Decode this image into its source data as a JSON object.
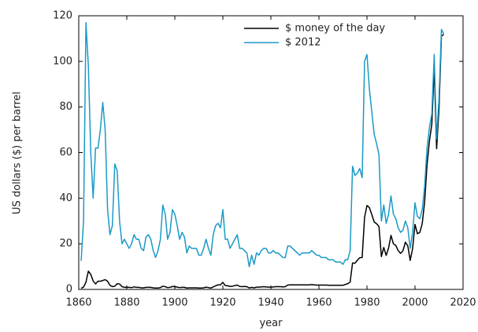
{
  "chart_data": {
    "type": "line",
    "xlabel": "year",
    "ylabel": "US dollars ($) per barrel",
    "x": [
      1861,
      1862,
      1863,
      1864,
      1865,
      1866,
      1867,
      1868,
      1869,
      1870,
      1871,
      1872,
      1873,
      1874,
      1875,
      1876,
      1877,
      1878,
      1879,
      1880,
      1881,
      1882,
      1883,
      1884,
      1885,
      1886,
      1887,
      1888,
      1889,
      1890,
      1891,
      1892,
      1893,
      1894,
      1895,
      1896,
      1897,
      1898,
      1899,
      1900,
      1901,
      1902,
      1903,
      1904,
      1905,
      1906,
      1907,
      1908,
      1909,
      1910,
      1911,
      1912,
      1913,
      1914,
      1915,
      1916,
      1917,
      1918,
      1919,
      1920,
      1921,
      1922,
      1923,
      1924,
      1925,
      1926,
      1927,
      1928,
      1929,
      1930,
      1931,
      1932,
      1933,
      1934,
      1935,
      1936,
      1937,
      1938,
      1939,
      1940,
      1941,
      1942,
      1943,
      1944,
      1945,
      1946,
      1947,
      1948,
      1949,
      1950,
      1951,
      1952,
      1953,
      1954,
      1955,
      1956,
      1957,
      1958,
      1959,
      1960,
      1961,
      1962,
      1963,
      1964,
      1965,
      1966,
      1967,
      1968,
      1969,
      1970,
      1971,
      1972,
      1973,
      1974,
      1975,
      1976,
      1977,
      1978,
      1979,
      1980,
      1981,
      1982,
      1983,
      1984,
      1985,
      1986,
      1987,
      1988,
      1989,
      1990,
      1991,
      1992,
      1993,
      1994,
      1995,
      1996,
      1997,
      1998,
      1999,
      2000,
      2001,
      2002,
      2003,
      2004,
      2005,
      2006,
      2007,
      2008,
      2009,
      2010,
      2011,
      2012
    ],
    "series": [
      {
        "name": "$ money of the day",
        "color": "#000000",
        "values": [
          0.5,
          1,
          3.2,
          8,
          6.6,
          3.7,
          2.4,
          3.6,
          3.6,
          3.9,
          4.3,
          3.6,
          1.8,
          1.2,
          1.4,
          2.5,
          2.4,
          1.2,
          0.9,
          0.95,
          0.9,
          0.8,
          1.1,
          0.9,
          0.9,
          0.7,
          0.7,
          0.9,
          0.9,
          0.9,
          0.7,
          0.6,
          0.6,
          0.8,
          1.4,
          1.2,
          0.8,
          0.9,
          1.3,
          1.2,
          1,
          0.8,
          0.9,
          0.9,
          0.6,
          0.7,
          0.7,
          0.7,
          0.7,
          0.6,
          0.6,
          0.7,
          1,
          0.8,
          0.6,
          1.1,
          1.6,
          2,
          2,
          3.1,
          1.7,
          1.6,
          1.3,
          1.4,
          1.7,
          1.9,
          1.3,
          1.2,
          1.3,
          1.2,
          0.65,
          0.9,
          0.7,
          1,
          1,
          1.1,
          1.2,
          1.1,
          1,
          1,
          1.1,
          1.2,
          1.2,
          1.2,
          1.1,
          1.2,
          1.9,
          2,
          2,
          2,
          2,
          2,
          2,
          2,
          2,
          2,
          2.1,
          2,
          1.9,
          1.9,
          1.9,
          1.9,
          1.9,
          1.8,
          1.8,
          1.8,
          1.8,
          1.8,
          1.8,
          1.8,
          2.2,
          2.5,
          3.3,
          11.6,
          11.5,
          12.8,
          13.9,
          14,
          31.6,
          36.8,
          35.9,
          32.9,
          29.6,
          28.8,
          27.6,
          14.4,
          18.4,
          14.9,
          18.2,
          23.7,
          20,
          19.3,
          17,
          15.8,
          17,
          20.7,
          19.1,
          12.7,
          17.9,
          28.5,
          24.4,
          25,
          28.8,
          38.3,
          54.5,
          65.1,
          72.4,
          97.3,
          61.7,
          79.5,
          111.3,
          111.7
        ]
      },
      {
        "name": "$ 2012",
        "color": "#1a9ac6",
        "values": [
          12.5,
          30,
          117,
          98,
          60,
          40,
          62,
          62,
          70,
          82,
          70,
          35,
          24,
          28,
          55,
          52,
          30,
          20,
          22,
          20,
          18,
          20,
          24,
          22,
          22,
          18,
          17,
          23,
          24,
          22,
          17,
          14,
          17,
          22,
          37,
          33,
          22,
          25,
          35,
          33,
          28,
          22,
          25,
          23,
          16,
          19,
          18,
          18,
          18,
          15,
          15,
          18,
          22,
          18,
          15,
          24,
          28,
          29,
          27,
          35,
          22,
          22,
          18,
          20,
          22,
          24,
          18,
          18,
          17,
          16,
          10,
          15,
          11,
          16,
          15,
          17,
          18,
          18,
          16,
          16,
          17,
          16,
          16,
          15,
          14,
          14,
          19,
          19,
          18,
          17,
          16,
          15,
          16,
          16,
          16,
          16,
          17,
          16,
          15,
          15,
          14,
          14,
          14,
          13,
          13,
          13,
          12,
          12,
          12,
          11,
          13,
          13,
          17,
          54,
          50,
          51,
          53,
          49,
          100,
          103,
          88,
          78,
          68,
          64,
          59,
          30,
          37,
          29,
          33,
          41,
          33,
          31,
          27,
          25,
          26,
          30,
          27,
          18,
          25,
          38,
          32,
          31,
          35,
          45,
          62,
          71,
          77,
          103,
          66,
          84,
          114,
          112
        ]
      }
    ],
    "xlim": [
      1860,
      2020
    ],
    "xticks": [
      1860,
      1880,
      1900,
      1920,
      1940,
      1960,
      1980,
      2000,
      2020
    ],
    "ylim": [
      0,
      120
    ],
    "yticks": [
      0,
      20,
      40,
      60,
      80,
      100,
      120
    ],
    "legend": "upper center",
    "grid": false
  }
}
